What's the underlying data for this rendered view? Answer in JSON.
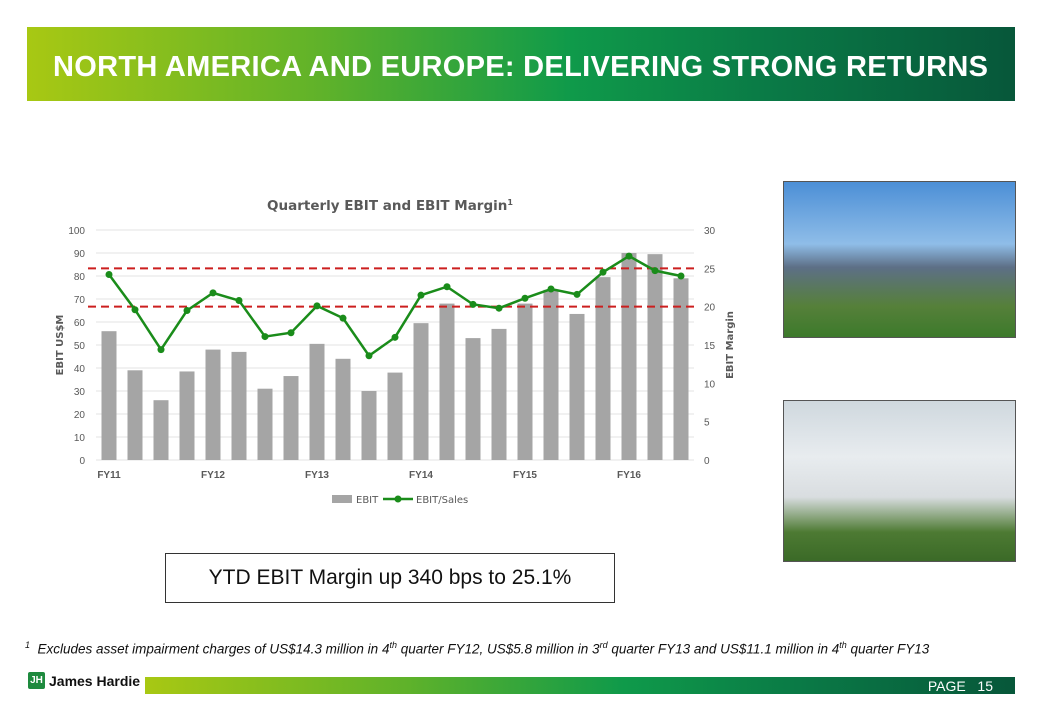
{
  "header": {
    "title": "NORTH AMERICA AND EUROPE: DELIVERING STRONG RETURNS"
  },
  "callout": "YTD EBIT Margin up 340 bps to 25.1%",
  "footnote": {
    "marker": "1",
    "text": "Excludes asset impairment charges of US$14.3 million in 4",
    "t1": "th",
    "m1": " quarter FY12, US$5.8 million in 3",
    "t2": "rd",
    "m2": " quarter FY13 and US$11.1 million in 4",
    "t3": "th",
    "m3": " quarter FY13"
  },
  "footer": {
    "logo": "James Hardie",
    "page_label": "PAGE",
    "page_number": "15"
  },
  "colors": {
    "bar": "#a5a5a5",
    "line": "#1a8c1a",
    "ref": "#cc1f1f"
  },
  "chart_data": {
    "type": "bar",
    "title": "Quarterly EBIT and EBIT Margin",
    "title_sup": "1",
    "ylabel": "EBIT US$M",
    "y2label": "EBIT Margin",
    "ylim": [
      0,
      100
    ],
    "y2lim": [
      0,
      30
    ],
    "yticks": [
      "0",
      "10",
      "20",
      "30",
      "40",
      "50",
      "60",
      "70",
      "80",
      "90",
      "100"
    ],
    "y2ticks": [
      "0",
      "5",
      "10",
      "15",
      "20",
      "25",
      "30"
    ],
    "xlabels": [
      {
        "index": 0,
        "label": "FY11"
      },
      {
        "index": 4,
        "label": "FY12"
      },
      {
        "index": 8,
        "label": "FY13"
      },
      {
        "index": 12,
        "label": "FY14"
      },
      {
        "index": 16,
        "label": "FY15"
      },
      {
        "index": 20,
        "label": "FY16"
      }
    ],
    "series": [
      {
        "name": "EBIT",
        "type": "bar",
        "axis": "left",
        "values": [
          56,
          39,
          26,
          38.5,
          48,
          47,
          31,
          36.5,
          50.5,
          44,
          30,
          38,
          59.5,
          68,
          53,
          57,
          68,
          74,
          63.5,
          79.5,
          90,
          89.5,
          79
        ]
      },
      {
        "name": "EBIT/Sales",
        "type": "line",
        "axis": "right",
        "values": [
          24.2,
          19.6,
          14.4,
          19.5,
          21.8,
          20.8,
          16.1,
          16.6,
          20.1,
          18.5,
          13.6,
          16.0,
          21.5,
          22.6,
          20.3,
          19.8,
          21.1,
          22.3,
          21.6,
          24.5,
          26.6,
          24.7,
          24.0
        ]
      }
    ],
    "reference_lines": [
      25,
      20
    ],
    "grid": true,
    "legend": "bottom"
  }
}
